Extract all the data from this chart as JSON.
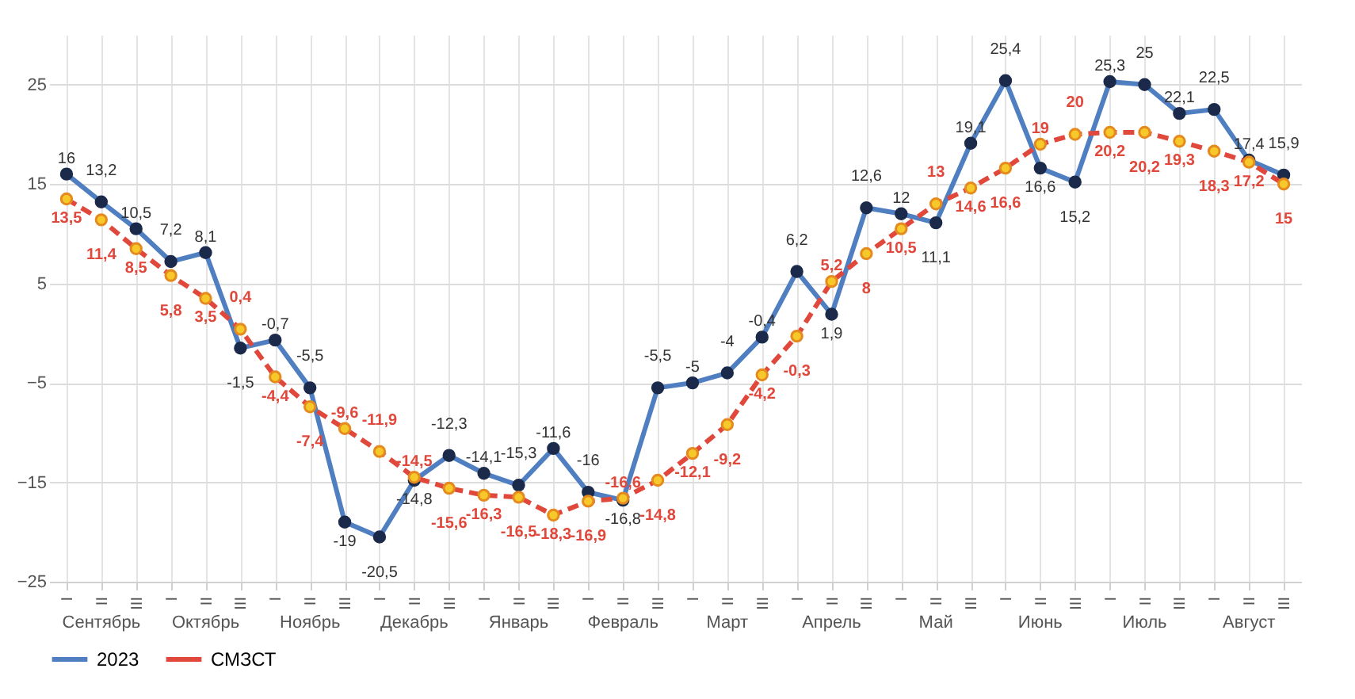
{
  "chart_data": {
    "type": "line",
    "categories": [
      "I",
      "II",
      "III",
      "I",
      "II",
      "III",
      "I",
      "II",
      "III",
      "I",
      "II",
      "III",
      "I",
      "II",
      "III",
      "I",
      "II",
      "III",
      "I",
      "II",
      "III",
      "I",
      "II",
      "III",
      "I",
      "II",
      "III",
      "I",
      "II",
      "III",
      "I",
      "II",
      "III",
      "I",
      "II",
      "III"
    ],
    "annotations": [
      "Сентябрь",
      "Октябрь",
      "Ноябрь",
      "Декабрь",
      "Январь",
      "Февраль",
      "Март",
      "Апрель",
      "Май",
      "Июнь",
      "Июль",
      "Август"
    ],
    "series": [
      {
        "name": "2023",
        "color": "#4f7fc0",
        "marker": "circle",
        "line_style": "solid",
        "values": [
          16,
          13.2,
          10.5,
          7.2,
          8.1,
          -1.5,
          -0.7,
          -5.5,
          -19,
          -20.5,
          -14.8,
          -12.3,
          -14.1,
          -15.3,
          -11.6,
          -16,
          -16.8,
          -5.5,
          -5,
          -4,
          -0.4,
          6.2,
          1.9,
          12.6,
          12,
          11.1,
          19.1,
          25.4,
          16.6,
          15.2,
          25.3,
          25,
          22.1,
          22.5,
          17.4,
          15.9
        ],
        "value_labels": [
          "16",
          "13,2",
          "10,5",
          "7,2",
          "8,1",
          "-1,5",
          "-0,7",
          "-5,5",
          "-19",
          "-20,5",
          "-14,8",
          "-12,3",
          "-14,1",
          "-15,3",
          "-11,6",
          "-16",
          "-16,8",
          "-5,5",
          "-5",
          "-4",
          "-0,4",
          "6,2",
          "1,9",
          "12,6",
          "12",
          "11,1",
          "19,1",
          "25,4",
          "16,6",
          "15,2",
          "25,3",
          "25",
          "22,1",
          "22,5",
          "17,4",
          "15,9"
        ]
      },
      {
        "name": "СМЗСТ",
        "color": "#e0483c",
        "marker": "circle",
        "line_style": "dashed",
        "values": [
          13.5,
          11.4,
          8.5,
          5.8,
          3.5,
          0.4,
          -4.4,
          -7.4,
          -9.6,
          -11.9,
          -14.5,
          -15.6,
          -16.3,
          -16.5,
          -18.3,
          -16.9,
          -16.6,
          -14.8,
          -12.1,
          -9.2,
          -4.2,
          -0.3,
          5.2,
          8,
          10.5,
          13,
          14.6,
          16.6,
          19,
          20,
          20.2,
          20.2,
          19.3,
          18.3,
          17.2,
          15
        ],
        "value_labels": [
          "13,5",
          "11,4",
          "8,5",
          "5,8",
          "3,5",
          "0,4",
          "-4,4",
          "-7,4",
          "-9,6",
          "-11,9",
          "-14,5",
          "-15,6",
          "-16,3",
          "-16,5",
          "-18,3",
          "-16,9",
          "-16,6",
          "-14,8",
          "-12,1",
          "-9,2",
          "-4,2",
          "-0,3",
          "5,2",
          "8",
          "10,5",
          "13",
          "14,6",
          "16,6",
          "19",
          "20",
          "20,2",
          "20,2",
          "19,3",
          "18,3",
          "17,2",
          "15"
        ]
      }
    ],
    "ylim": [
      -25,
      30
    ],
    "yticks": [
      -25,
      -15,
      -5,
      5,
      15,
      25
    ],
    "grid": true,
    "legend": "bottom"
  }
}
